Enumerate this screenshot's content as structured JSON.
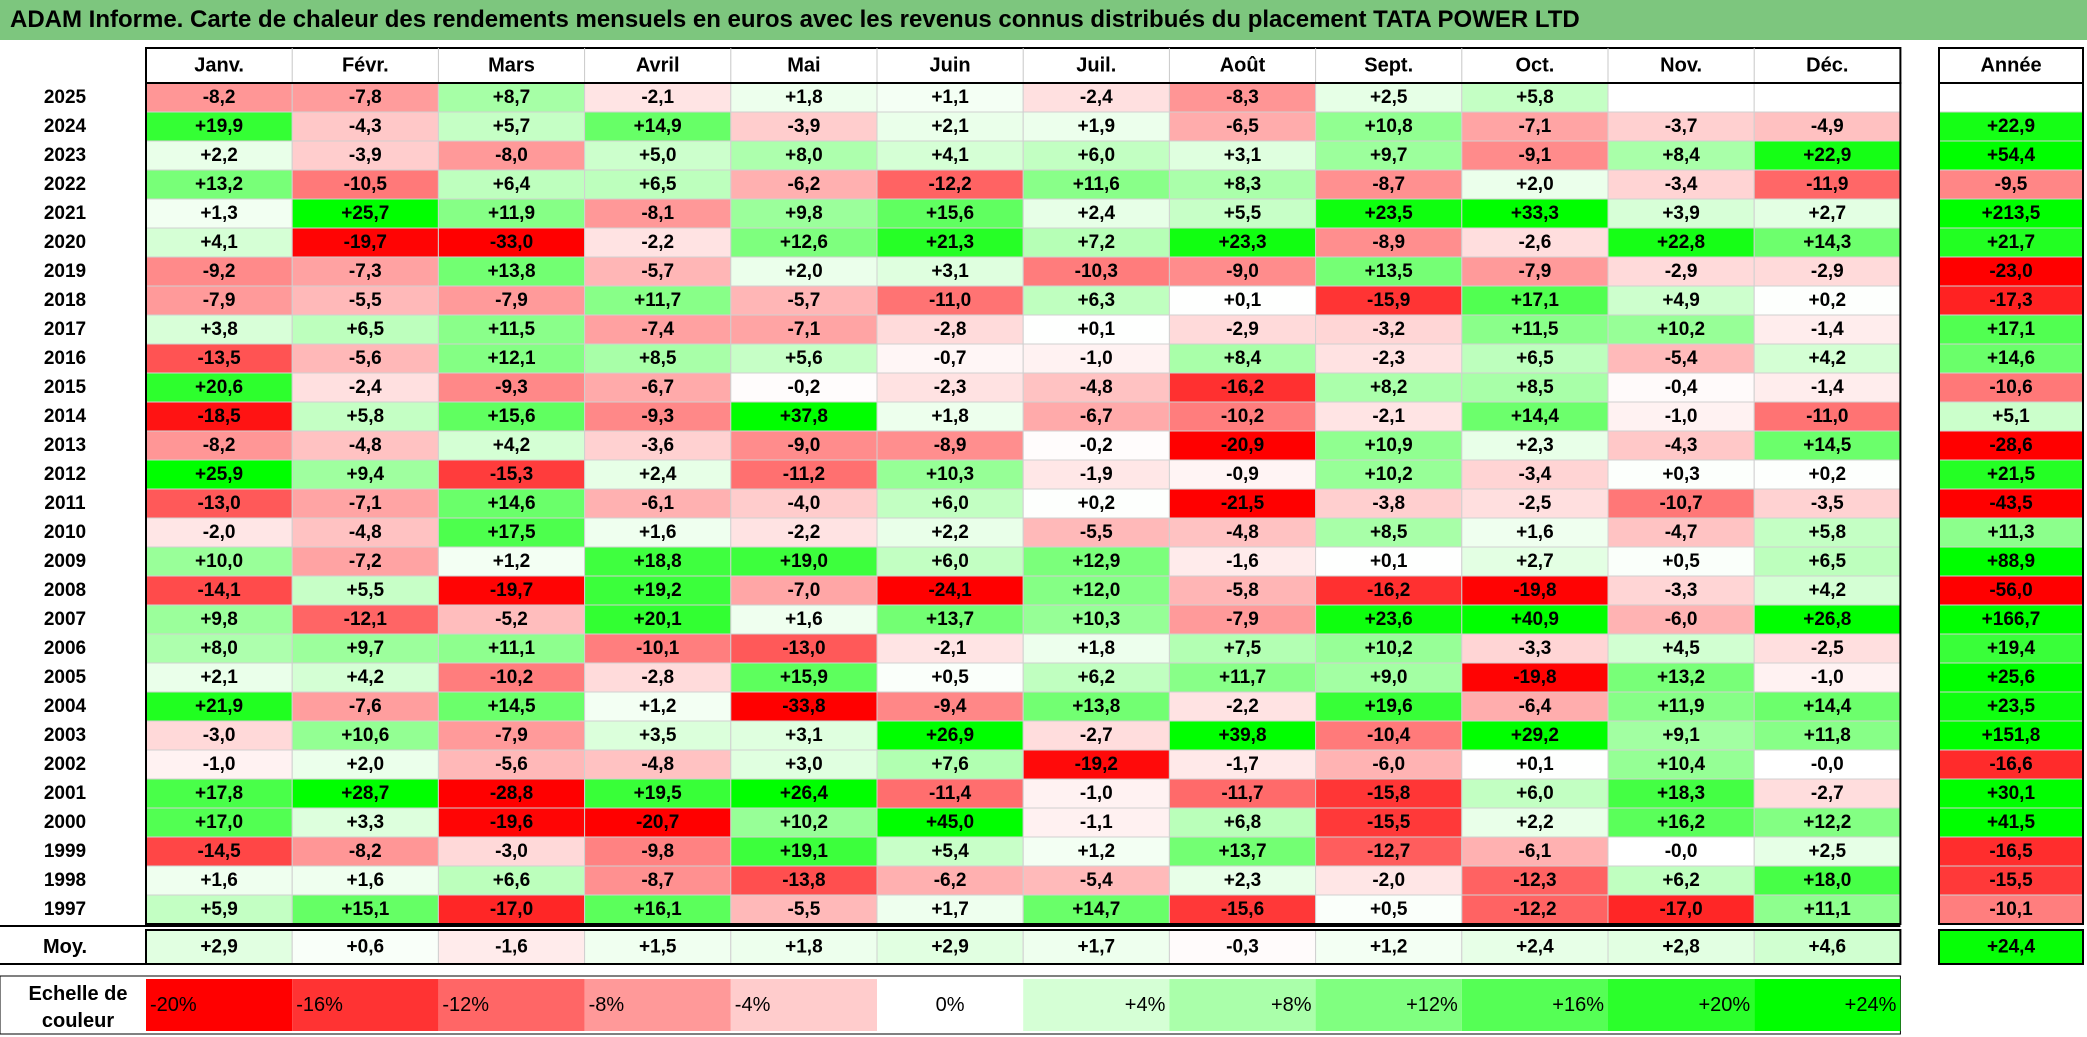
{
  "title": "ADAM Informe. Carte de chaleur des rendements mensuels en euros avec les revenus connus distribués du placement TATA POWER LTD",
  "colors": {
    "title_bg": "#7dc67e",
    "positive_max": "#00ff00",
    "negative_max": "#ff0000",
    "neutral": "#ffffff"
  },
  "chart_data": {
    "type": "heatmap",
    "months": [
      "Janv.",
      "Févr.",
      "Mars",
      "Avril",
      "Mai",
      "Juin",
      "Juil.",
      "Août",
      "Sept.",
      "Oct.",
      "Nov.",
      "Déc."
    ],
    "year_header": "Année",
    "rows": [
      {
        "year": "2025",
        "values": [
          "-8,2",
          "-7,8",
          "+8,7",
          "-2,1",
          "+1,8",
          "+1,1",
          "-2,4",
          "-8,3",
          "+2,5",
          "+5,8",
          "",
          ""
        ],
        "annual": ""
      },
      {
        "year": "2024",
        "values": [
          "+19,9",
          "-4,3",
          "+5,7",
          "+14,9",
          "-3,9",
          "+2,1",
          "+1,9",
          "-6,5",
          "+10,8",
          "-7,1",
          "-3,7",
          "-4,9"
        ],
        "annual": "+22,9"
      },
      {
        "year": "2023",
        "values": [
          "+2,2",
          "-3,9",
          "-8,0",
          "+5,0",
          "+8,0",
          "+4,1",
          "+6,0",
          "+3,1",
          "+9,7",
          "-9,1",
          "+8,4",
          "+22,9"
        ],
        "annual": "+54,4"
      },
      {
        "year": "2022",
        "values": [
          "+13,2",
          "-10,5",
          "+6,4",
          "+6,5",
          "-6,2",
          "-12,2",
          "+11,6",
          "+8,3",
          "-8,7",
          "+2,0",
          "-3,4",
          "-11,9"
        ],
        "annual": "-9,5"
      },
      {
        "year": "2021",
        "values": [
          "+1,3",
          "+25,7",
          "+11,9",
          "-8,1",
          "+9,8",
          "+15,6",
          "+2,4",
          "+5,5",
          "+23,5",
          "+33,3",
          "+3,9",
          "+2,7"
        ],
        "annual": "+213,5"
      },
      {
        "year": "2020",
        "values": [
          "+4,1",
          "-19,7",
          "-33,0",
          "-2,2",
          "+12,6",
          "+21,3",
          "+7,2",
          "+23,3",
          "-8,9",
          "-2,6",
          "+22,8",
          "+14,3"
        ],
        "annual": "+21,7"
      },
      {
        "year": "2019",
        "values": [
          "-9,2",
          "-7,3",
          "+13,8",
          "-5,7",
          "+2,0",
          "+3,1",
          "-10,3",
          "-9,0",
          "+13,5",
          "-7,9",
          "-2,9",
          "-2,9"
        ],
        "annual": "-23,0"
      },
      {
        "year": "2018",
        "values": [
          "-7,9",
          "-5,5",
          "-7,9",
          "+11,7",
          "-5,7",
          "-11,0",
          "+6,3",
          "+0,1",
          "-15,9",
          "+17,1",
          "+4,9",
          "+0,2"
        ],
        "annual": "-17,3"
      },
      {
        "year": "2017",
        "values": [
          "+3,8",
          "+6,5",
          "+11,5",
          "-7,4",
          "-7,1",
          "-2,8",
          "+0,1",
          "-2,9",
          "-3,2",
          "+11,5",
          "+10,2",
          "-1,4"
        ],
        "annual": "+17,1"
      },
      {
        "year": "2016",
        "values": [
          "-13,5",
          "-5,6",
          "+12,1",
          "+8,5",
          "+5,6",
          "-0,7",
          "-1,0",
          "+8,4",
          "-2,3",
          "+6,5",
          "-5,4",
          "+4,2"
        ],
        "annual": "+14,6"
      },
      {
        "year": "2015",
        "values": [
          "+20,6",
          "-2,4",
          "-9,3",
          "-6,7",
          "-0,2",
          "-2,3",
          "-4,8",
          "-16,2",
          "+8,2",
          "+8,5",
          "-0,4",
          "-1,4"
        ],
        "annual": "-10,6"
      },
      {
        "year": "2014",
        "values": [
          "-18,5",
          "+5,8",
          "+15,6",
          "-9,3",
          "+37,8",
          "+1,8",
          "-6,7",
          "-10,2",
          "-2,1",
          "+14,4",
          "-1,0",
          "-11,0"
        ],
        "annual": "+5,1"
      },
      {
        "year": "2013",
        "values": [
          "-8,2",
          "-4,8",
          "+4,2",
          "-3,6",
          "-9,0",
          "-8,9",
          "-0,2",
          "-20,9",
          "+10,9",
          "+2,3",
          "-4,3",
          "+14,5"
        ],
        "annual": "-28,6"
      },
      {
        "year": "2012",
        "values": [
          "+25,9",
          "+9,4",
          "-15,3",
          "+2,4",
          "-11,2",
          "+10,3",
          "-1,9",
          "-0,9",
          "+10,2",
          "-3,4",
          "+0,3",
          "+0,2"
        ],
        "annual": "+21,5"
      },
      {
        "year": "2011",
        "values": [
          "-13,0",
          "-7,1",
          "+14,6",
          "-6,1",
          "-4,0",
          "+6,0",
          "+0,2",
          "-21,5",
          "-3,8",
          "-2,5",
          "-10,7",
          "-3,5"
        ],
        "annual": "-43,5"
      },
      {
        "year": "2010",
        "values": [
          "-2,0",
          "-4,8",
          "+17,5",
          "+1,6",
          "-2,2",
          "+2,2",
          "-5,5",
          "-4,8",
          "+8,5",
          "+1,6",
          "-4,7",
          "+5,8"
        ],
        "annual": "+11,3"
      },
      {
        "year": "2009",
        "values": [
          "+10,0",
          "-7,2",
          "+1,2",
          "+18,8",
          "+19,0",
          "+6,0",
          "+12,9",
          "-1,6",
          "+0,1",
          "+2,7",
          "+0,5",
          "+6,5"
        ],
        "annual": "+88,9"
      },
      {
        "year": "2008",
        "values": [
          "-14,1",
          "+5,5",
          "-19,7",
          "+19,2",
          "-7,0",
          "-24,1",
          "+12,0",
          "-5,8",
          "-16,2",
          "-19,8",
          "-3,3",
          "+4,2"
        ],
        "annual": "-56,0"
      },
      {
        "year": "2007",
        "values": [
          "+9,8",
          "-12,1",
          "-5,2",
          "+20,1",
          "+1,6",
          "+13,7",
          "+10,3",
          "-7,9",
          "+23,6",
          "+40,9",
          "-6,0",
          "+26,8"
        ],
        "annual": "+166,7"
      },
      {
        "year": "2006",
        "values": [
          "+8,0",
          "+9,7",
          "+11,1",
          "-10,1",
          "-13,0",
          "-2,1",
          "+1,8",
          "+7,5",
          "+10,2",
          "-3,3",
          "+4,5",
          "-2,5"
        ],
        "annual": "+19,4"
      },
      {
        "year": "2005",
        "values": [
          "+2,1",
          "+4,2",
          "-10,2",
          "-2,8",
          "+15,9",
          "+0,5",
          "+6,2",
          "+11,7",
          "+9,0",
          "-19,8",
          "+13,2",
          "-1,0"
        ],
        "annual": "+25,6"
      },
      {
        "year": "2004",
        "values": [
          "+21,9",
          "-7,6",
          "+14,5",
          "+1,2",
          "-33,8",
          "-9,4",
          "+13,8",
          "-2,2",
          "+19,6",
          "-6,4",
          "+11,9",
          "+14,4"
        ],
        "annual": "+23,5"
      },
      {
        "year": "2003",
        "values": [
          "-3,0",
          "+10,6",
          "-7,9",
          "+3,5",
          "+3,1",
          "+26,9",
          "-2,7",
          "+39,8",
          "-10,4",
          "+29,2",
          "+9,1",
          "+11,8"
        ],
        "annual": "+151,8"
      },
      {
        "year": "2002",
        "values": [
          "-1,0",
          "+2,0",
          "-5,6",
          "-4,8",
          "+3,0",
          "+7,6",
          "-19,2",
          "-1,7",
          "-6,0",
          "+0,1",
          "+10,4",
          "-0,0"
        ],
        "annual": "-16,6"
      },
      {
        "year": "2001",
        "values": [
          "+17,8",
          "+28,7",
          "-28,8",
          "+19,5",
          "+26,4",
          "-11,4",
          "-1,0",
          "-11,7",
          "-15,8",
          "+6,0",
          "+18,3",
          "-2,7"
        ],
        "annual": "+30,1"
      },
      {
        "year": "2000",
        "values": [
          "+17,0",
          "+3,3",
          "-19,6",
          "-20,7",
          "+10,2",
          "+45,0",
          "-1,1",
          "+6,8",
          "-15,5",
          "+2,2",
          "+16,2",
          "+12,2"
        ],
        "annual": "+41,5"
      },
      {
        "year": "1999",
        "values": [
          "-14,5",
          "-8,2",
          "-3,0",
          "-9,8",
          "+19,1",
          "+5,4",
          "+1,2",
          "+13,7",
          "-12,7",
          "-6,1",
          "-0,0",
          "+2,5"
        ],
        "annual": "-16,5"
      },
      {
        "year": "1998",
        "values": [
          "+1,6",
          "+1,6",
          "+6,6",
          "-8,7",
          "-13,8",
          "-6,2",
          "-5,4",
          "+2,3",
          "-2,0",
          "-12,3",
          "+6,2",
          "+18,0"
        ],
        "annual": "-15,5"
      },
      {
        "year": "1997",
        "values": [
          "+5,9",
          "+15,1",
          "-17,0",
          "+16,1",
          "-5,5",
          "+1,7",
          "+14,7",
          "-15,6",
          "+0,5",
          "-12,2",
          "-17,0",
          "+11,1"
        ],
        "annual": "-10,1"
      }
    ],
    "average": {
      "label": "Moy.",
      "values": [
        "+2,9",
        "+0,6",
        "-1,6",
        "+1,5",
        "+1,8",
        "+2,9",
        "+1,7",
        "-0,3",
        "+1,2",
        "+2,4",
        "+2,8",
        "+4,6"
      ],
      "annual": "+24,4"
    },
    "scale": {
      "label_line1": "Echelle de",
      "label_line2": "couleur",
      "steps": [
        "-20%",
        "-16%",
        "-12%",
        "-8%",
        "-4%",
        "0%",
        "+4%",
        "+8%",
        "+12%",
        "+16%",
        "+20%",
        "+24%"
      ]
    }
  }
}
